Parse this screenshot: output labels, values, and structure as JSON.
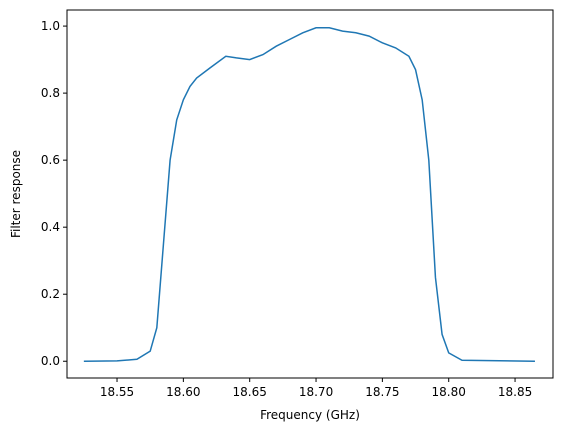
{
  "chart_data": {
    "type": "line",
    "xlabel": "Frequency (GHz)",
    "ylabel": "Filter response",
    "x": [
      18.525,
      18.55,
      18.565,
      18.575,
      18.58,
      18.585,
      18.59,
      18.595,
      18.6,
      18.605,
      18.61,
      18.62,
      18.632,
      18.64,
      18.65,
      18.66,
      18.67,
      18.68,
      18.69,
      18.7,
      18.71,
      18.72,
      18.73,
      18.74,
      18.75,
      18.76,
      18.77,
      18.775,
      18.78,
      18.785,
      18.79,
      18.795,
      18.8,
      18.81,
      18.865
    ],
    "series": [
      {
        "color": "#1f77b4",
        "values": [
          0,
          0.001,
          0.006,
          0.03,
          0.1,
          0.35,
          0.6,
          0.72,
          0.78,
          0.82,
          0.845,
          0.875,
          0.91,
          0.905,
          0.9,
          0.915,
          0.94,
          0.96,
          0.98,
          0.995,
          0.995,
          0.985,
          0.98,
          0.97,
          0.95,
          0.935,
          0.91,
          0.87,
          0.78,
          0.6,
          0.25,
          0.08,
          0.025,
          0.003,
          0
        ]
      }
    ],
    "xlim": [
      18.5123,
      18.8786
    ],
    "ylim": [
      -0.05,
      1.048
    ],
    "xticks": [
      {
        "value": 18.55,
        "label": "18.55"
      },
      {
        "value": 18.6,
        "label": "18.60"
      },
      {
        "value": 18.65,
        "label": "18.65"
      },
      {
        "value": 18.7,
        "label": "18.70"
      },
      {
        "value": 18.75,
        "label": "18.75"
      },
      {
        "value": 18.8,
        "label": "18.80"
      },
      {
        "value": 18.85,
        "label": "18.85"
      }
    ],
    "yticks": [
      {
        "value": 0,
        "label": "0.0"
      },
      {
        "value": 0.2,
        "label": "0.2"
      },
      {
        "value": 0.4,
        "label": "0.4"
      },
      {
        "value": 0.6,
        "label": "0.6"
      },
      {
        "value": 0.8,
        "label": "0.8"
      },
      {
        "value": 1,
        "label": "1.0"
      }
    ],
    "grid": false
  }
}
